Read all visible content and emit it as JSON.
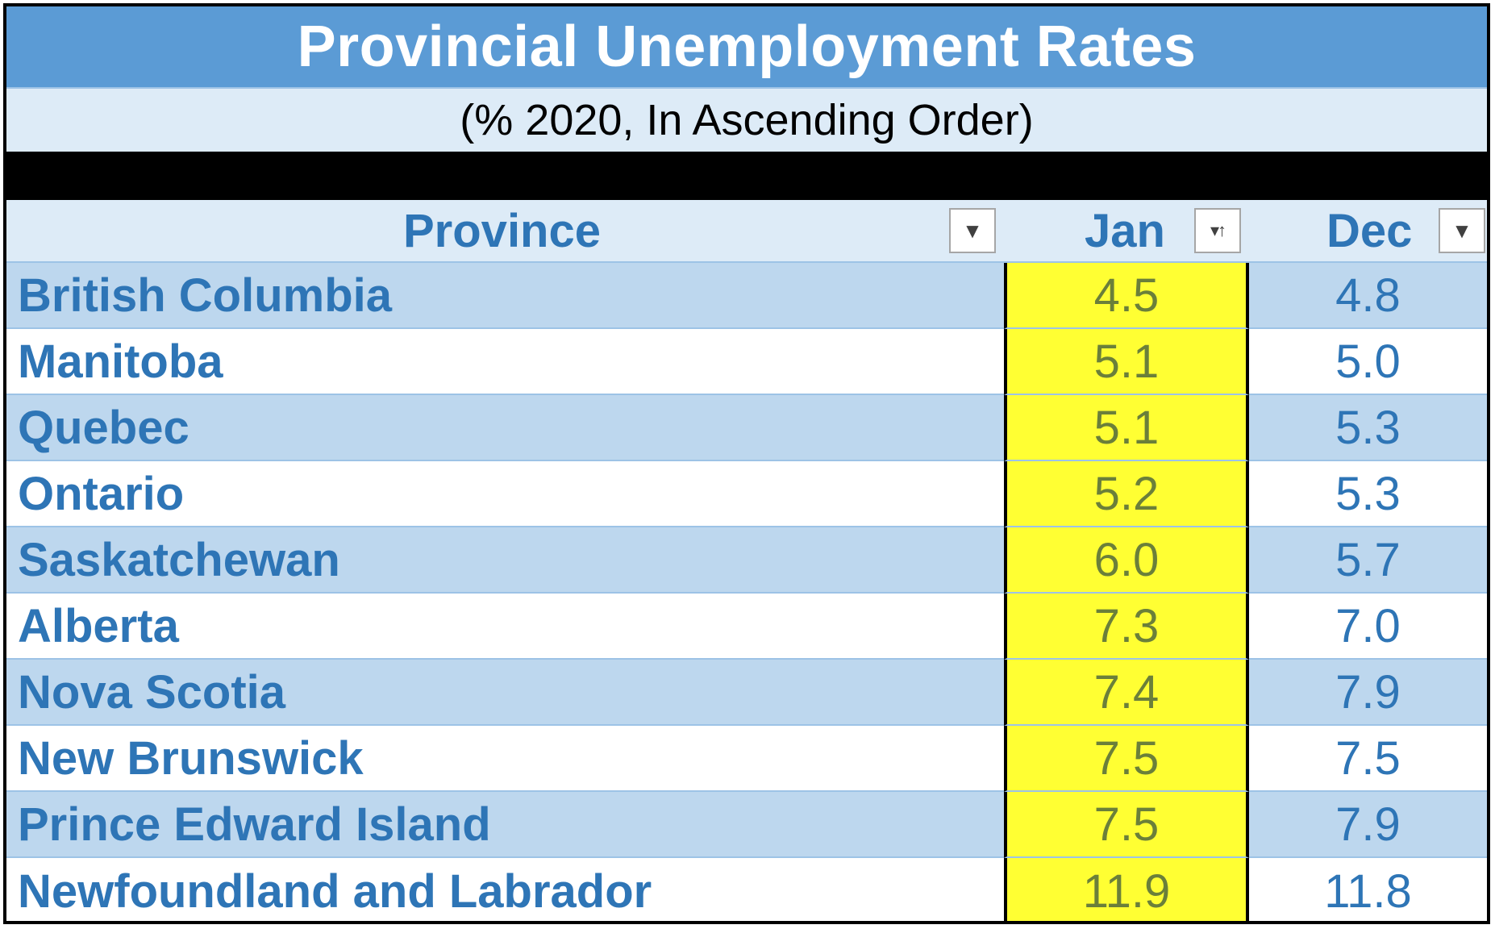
{
  "table": {
    "title": "Provincial Unemployment Rates",
    "subtitle": "(% 2020, In Ascending Order)",
    "columns": {
      "province": "Province",
      "jan": "Jan",
      "dec": "Dec"
    },
    "rows": [
      {
        "province": "British Columbia",
        "jan": "4.5",
        "dec": "4.8"
      },
      {
        "province": "Manitoba",
        "jan": "5.1",
        "dec": "5.0"
      },
      {
        "province": "Quebec",
        "jan": "5.1",
        "dec": "5.3"
      },
      {
        "province": "Ontario",
        "jan": "5.2",
        "dec": "5.3"
      },
      {
        "province": "Saskatchewan",
        "jan": "6.0",
        "dec": "5.7"
      },
      {
        "province": "Alberta",
        "jan": "7.3",
        "dec": "7.0"
      },
      {
        "province": "Nova Scotia",
        "jan": "7.4",
        "dec": "7.9"
      },
      {
        "province": "New Brunswick",
        "jan": "7.5",
        "dec": "7.5"
      },
      {
        "province": "Prince Edward Island",
        "jan": "7.5",
        "dec": "7.9"
      },
      {
        "province": "Newfoundland and Labrador",
        "jan": "11.9",
        "dec": "11.8"
      }
    ]
  },
  "icons": {
    "filter": "filter-dropdown-icon",
    "sorted_filter": "sort-ascending-filter-icon"
  },
  "colors": {
    "title_bg": "#5b9bd5",
    "band_bg": "#bdd7ee",
    "header_bg": "#ddebf7",
    "highlight": "#ffff33",
    "text_blue": "#2e75b6"
  }
}
